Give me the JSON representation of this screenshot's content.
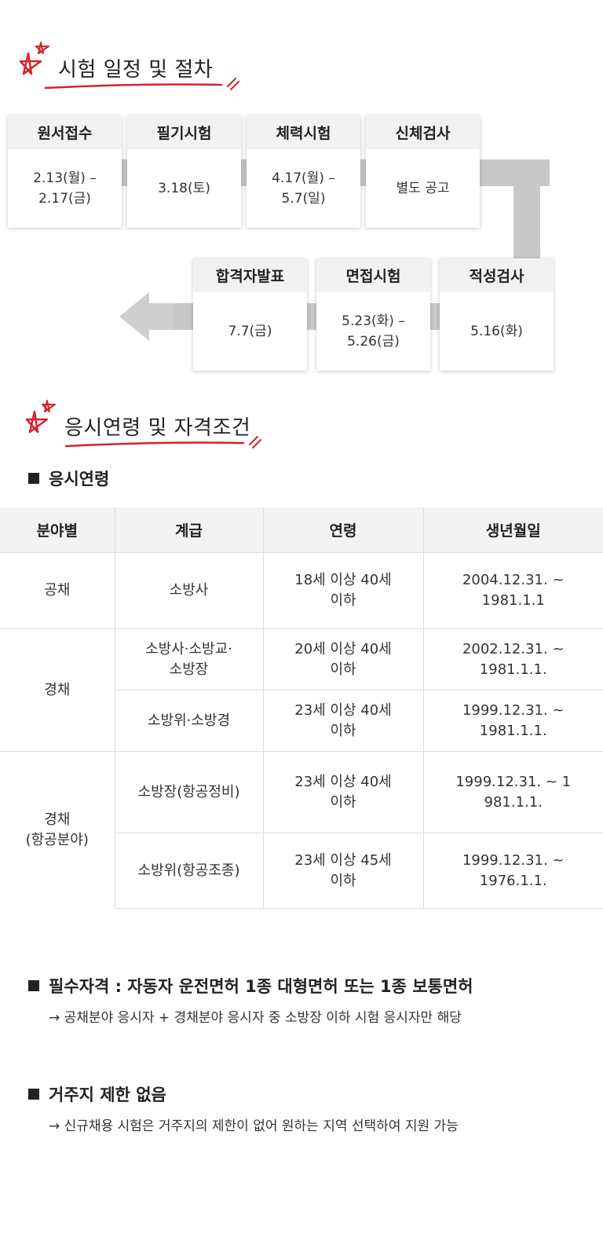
{
  "schedule": {
    "title": "시험 일정 및 절차",
    "steps": [
      {
        "label": "원서접수",
        "date": "2.13(월) –\n2.17(금)"
      },
      {
        "label": "필기시험",
        "date": "3.18(토)"
      },
      {
        "label": "체력시험",
        "date": "4.17(월) –\n5.7(일)"
      },
      {
        "label": "신체검사",
        "date": "별도 공고"
      },
      {
        "label": "적성검사",
        "date": "5.16(화)"
      },
      {
        "label": "면접시험",
        "date": "5.23(화) –\n5.26(금)"
      },
      {
        "label": "합격자발표",
        "date": "7.7(금)"
      }
    ]
  },
  "qualification": {
    "title": "응시연령 및 자격조건",
    "age_heading": "응시연령",
    "table": {
      "headers": [
        "분야별",
        "계급",
        "연령",
        "생년월일"
      ],
      "groups": [
        {
          "field": "공채",
          "rows": [
            {
              "rank": "소방사",
              "age": "18세 이상 40세\n이하",
              "birth": "2004.12.31. ~\n1981.1.1"
            }
          ]
        },
        {
          "field": "경채",
          "rows": [
            {
              "rank": "소방사·소방교·\n소방장",
              "age": "20세 이상 40세\n이하",
              "birth": "2002.12.31. ~\n1981.1.1."
            },
            {
              "rank": "소방위·소방경",
              "age": "23세 이상 40세\n이하",
              "birth": "1999.12.31. ~\n1981.1.1."
            }
          ]
        },
        {
          "field": "경채\n(항공분야)",
          "rows": [
            {
              "rank": "소방장(항공정비)",
              "age": "23세 이상 40세\n이하",
              "birth": "1999.12.31. ~ 1\n981.1.1."
            },
            {
              "rank": "소방위(항공조종)",
              "age": "23세 이상 45세\n이하",
              "birth": "1999.12.31. ~\n1976.1.1."
            }
          ]
        }
      ]
    },
    "license_heading": "필수자격 : 자동자 운전면허 1종 대형면허 또는 1종 보통면허",
    "license_note": "→ 공채분야 응시자 + 경채분야 응시자 중 소방장 이하 시험 응시자만 해당",
    "residence_heading": "거주지 제한 없음",
    "residence_note": "→ 신규채용 시험은 거주지의 제한이 없어 원하는 지역 선택하여 지원 가능"
  },
  "colors": {
    "accent": "#d3232f",
    "connector": "#c8c8c8",
    "header_bg": "#f2f2f2"
  },
  "icons": {
    "heading": "star-doodle-icon",
    "flow_end": "arrow-left-icon"
  }
}
